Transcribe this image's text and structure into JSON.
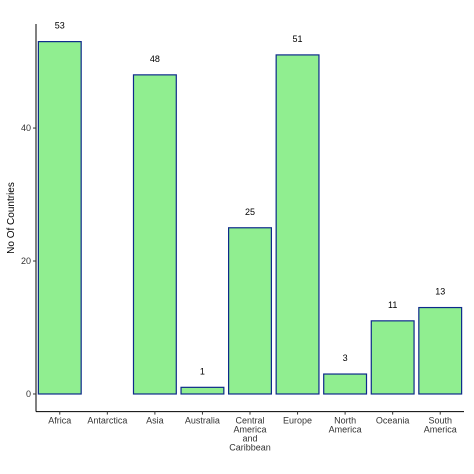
{
  "chart_data": {
    "type": "bar",
    "y_label": "No Of Countries",
    "categories": [
      "Africa",
      "Antarctica",
      "Asia",
      "Australia",
      "Central America and Caribbean",
      "Europe",
      "North America",
      "Oceania",
      "South America"
    ],
    "values": [
      53,
      null,
      48,
      1,
      25,
      51,
      3,
      11,
      13
    ],
    "color": "#90ee90",
    "edge_color": "#0d2a8a",
    "ylim": [
      -2.65,
      55.65
    ],
    "yticks": [
      0,
      20,
      40
    ],
    "grid": false
  }
}
